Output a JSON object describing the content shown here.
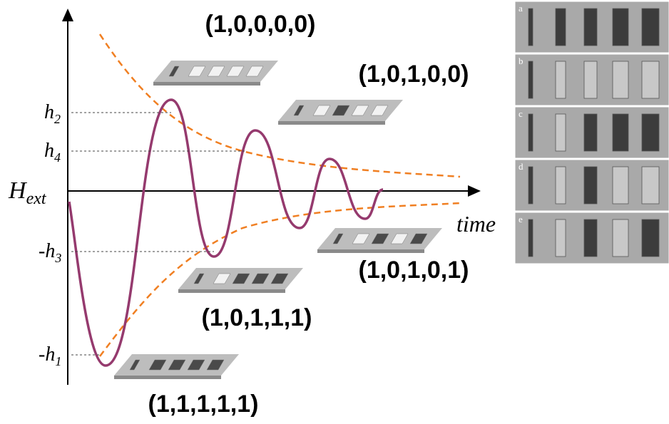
{
  "axes": {
    "y_label": {
      "main": "H",
      "sub": "ext"
    },
    "x_label": "time",
    "levels": [
      {
        "main": "h",
        "sub": "2"
      },
      {
        "main": "h",
        "sub": "4"
      },
      {
        "main": "-h",
        "sub": "3"
      },
      {
        "main": "-h",
        "sub": "1"
      }
    ]
  },
  "states": [
    {
      "code": "(1,0,0,0,0)"
    },
    {
      "code": "(1,0,1,0,0)"
    },
    {
      "code": "(1,0,1,0,1)"
    },
    {
      "code": "(1,0,1,1,1)"
    },
    {
      "code": "(1,1,1,1,1)"
    }
  ],
  "panels": [
    {
      "label": "a"
    },
    {
      "label": "b"
    },
    {
      "label": "c"
    },
    {
      "label": "d"
    },
    {
      "label": "e"
    }
  ]
}
